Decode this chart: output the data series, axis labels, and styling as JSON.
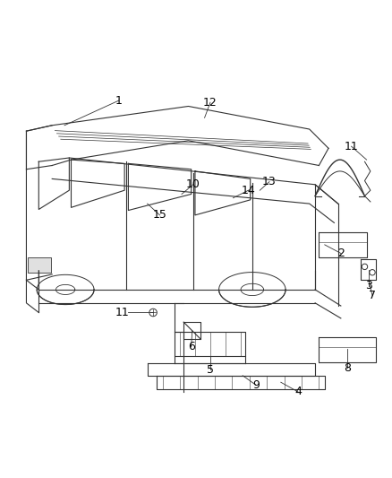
{
  "background_color": "#ffffff",
  "line_color": "#333333",
  "label_color": "#000000",
  "label_fontsize": 9,
  "figsize": [
    4.38,
    5.33
  ],
  "dpi": 100
}
